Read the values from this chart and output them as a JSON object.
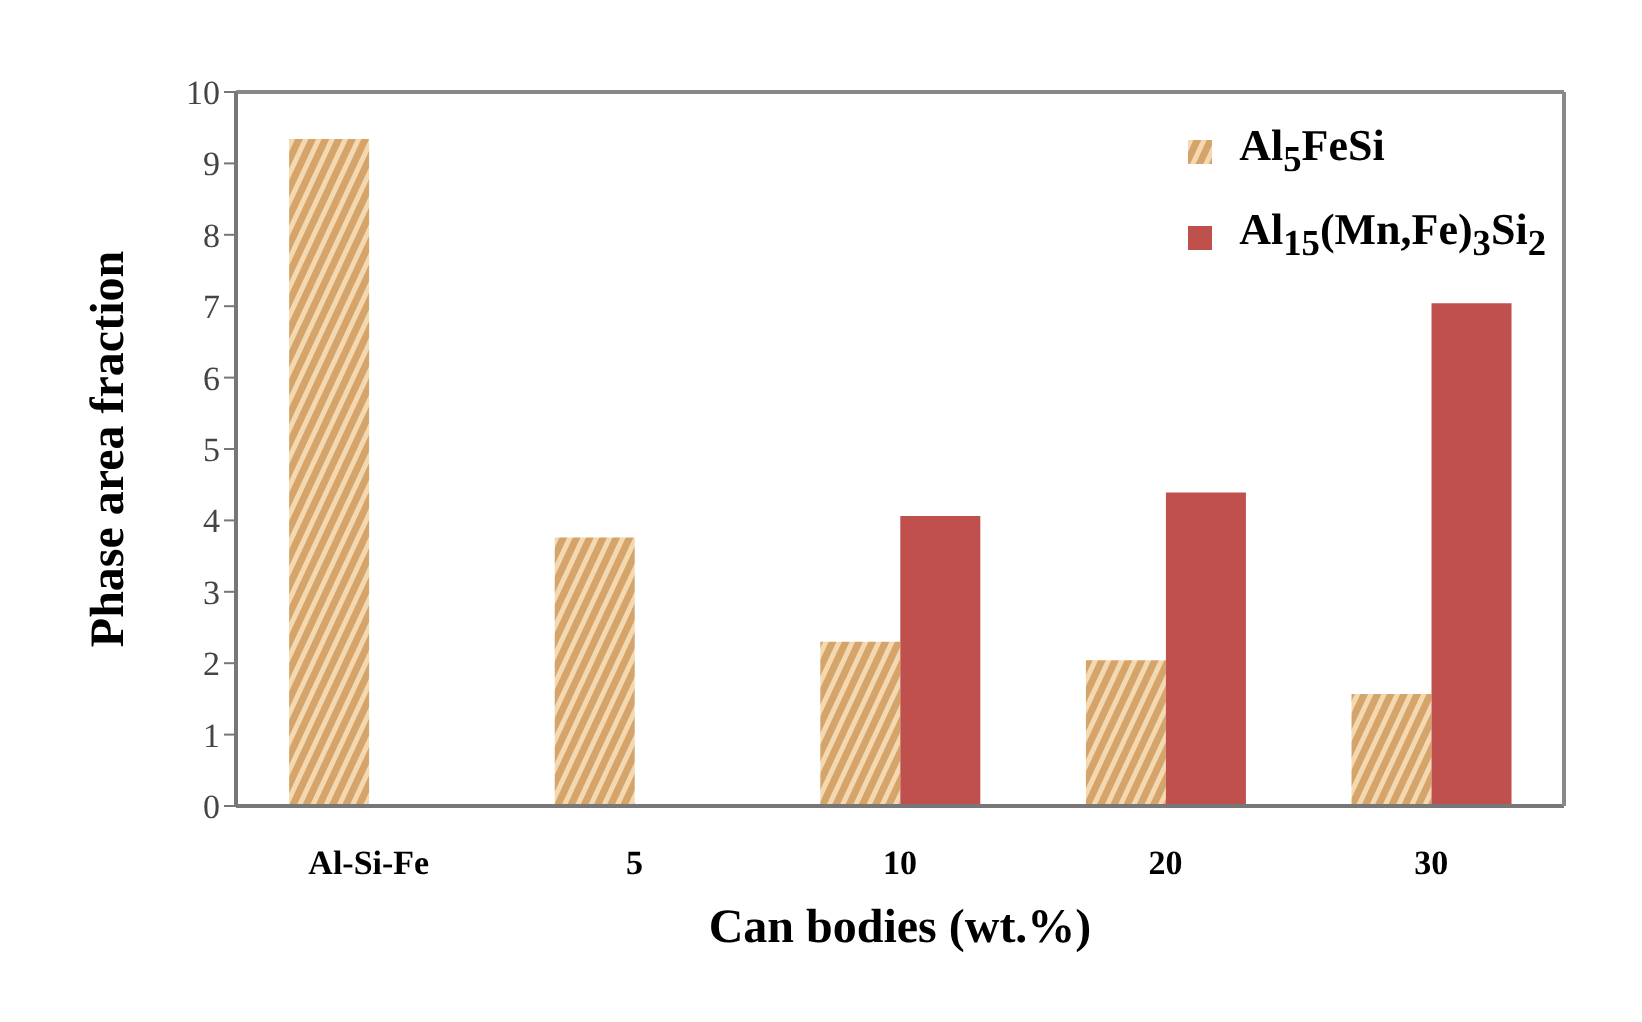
{
  "chart_data": {
    "type": "bar",
    "xlabel": "Can bodies (wt.%)",
    "ylabel": "Phase area fraction",
    "categories": [
      "Al-Si-Fe",
      "5",
      "10",
      "20",
      "30"
    ],
    "series": [
      {
        "name": "Al$_{5}$FeSi",
        "color": "#d4a46a",
        "values": [
          9.34,
          3.76,
          2.3,
          2.04,
          1.57
        ]
      },
      {
        "name": "Al$_{15}$(Mn,Fe)$_{3}$Si$_{2}$",
        "color": "#c0504d",
        "values": [
          null,
          null,
          4.06,
          4.39,
          7.04
        ]
      }
    ],
    "ylim": [
      0,
      10
    ],
    "yticks": [
      0,
      1,
      2,
      3,
      4,
      5,
      6,
      7,
      8,
      9,
      10
    ],
    "legend": "top right"
  }
}
